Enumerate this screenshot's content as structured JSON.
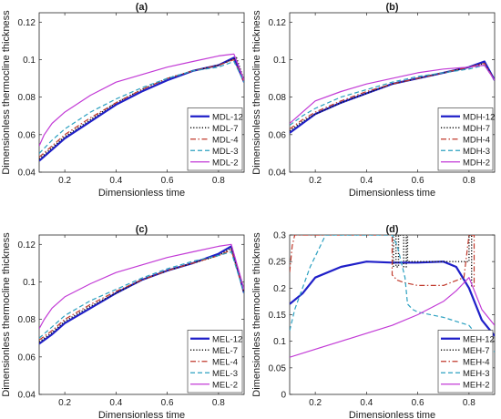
{
  "chart_data": [
    {
      "panel": "(a)",
      "type": "line",
      "xlabel": "Dimensionless time",
      "ylabel": "Dimensionless thermocline thickness",
      "xlim": [
        0.1,
        0.9
      ],
      "ylim": [
        0.04,
        0.125
      ],
      "xticks": [
        0.2,
        0.4,
        0.6,
        0.8
      ],
      "xtick_labels": [
        "0.2",
        "0.4",
        "0.6",
        "0.8"
      ],
      "yticks": [
        0.04,
        0.06,
        0.08,
        0.1,
        0.12
      ],
      "ytick_labels": [
        "0.04",
        "0.06",
        "0.08",
        "0.1",
        "0.12"
      ],
      "legend_position": "bottom-right",
      "series": [
        {
          "name": "MDL-12",
          "color": "#1f1fc8",
          "dash": "solid",
          "width": 2.2,
          "x": [
            0.1,
            0.15,
            0.2,
            0.3,
            0.4,
            0.5,
            0.6,
            0.7,
            0.8,
            0.86,
            0.9
          ],
          "y": [
            0.046,
            0.052,
            0.058,
            0.067,
            0.076,
            0.083,
            0.089,
            0.094,
            0.097,
            0.101,
            0.088
          ]
        },
        {
          "name": "MDL-7",
          "color": "#111111",
          "dash": "dot",
          "width": 1.4,
          "x": [
            0.1,
            0.15,
            0.2,
            0.3,
            0.4,
            0.5,
            0.6,
            0.7,
            0.8,
            0.87,
            0.9
          ],
          "y": [
            0.047,
            0.053,
            0.059,
            0.068,
            0.077,
            0.084,
            0.09,
            0.094,
            0.097,
            0.101,
            0.089
          ]
        },
        {
          "name": "MDL-4",
          "color": "#c0392b",
          "dash": "dashdot",
          "width": 1.2,
          "x": [
            0.1,
            0.15,
            0.2,
            0.3,
            0.4,
            0.5,
            0.6,
            0.7,
            0.8,
            0.86,
            0.9
          ],
          "y": [
            0.048,
            0.054,
            0.06,
            0.069,
            0.077,
            0.084,
            0.09,
            0.094,
            0.097,
            0.1,
            0.088
          ]
        },
        {
          "name": "MDL-3",
          "color": "#2ba0c0",
          "dash": "dash",
          "width": 1.2,
          "x": [
            0.1,
            0.15,
            0.2,
            0.3,
            0.4,
            0.5,
            0.6,
            0.7,
            0.8,
            0.86,
            0.9
          ],
          "y": [
            0.05,
            0.057,
            0.063,
            0.072,
            0.079,
            0.085,
            0.09,
            0.094,
            0.096,
            0.099,
            0.088
          ]
        },
        {
          "name": "MDL-2",
          "color": "#c23ad6",
          "dash": "solid",
          "width": 1.2,
          "x": [
            0.1,
            0.12,
            0.15,
            0.2,
            0.3,
            0.4,
            0.5,
            0.6,
            0.7,
            0.8,
            0.86,
            0.9
          ],
          "y": [
            0.054,
            0.06,
            0.066,
            0.072,
            0.081,
            0.088,
            0.092,
            0.096,
            0.099,
            0.102,
            0.103,
            0.089
          ]
        }
      ]
    },
    {
      "panel": "(b)",
      "type": "line",
      "xlabel": "Dimensionless time",
      "ylabel": "Dimensionless thermocline thickness",
      "xlim": [
        0.1,
        0.9
      ],
      "ylim": [
        0.04,
        0.125
      ],
      "xticks": [
        0.2,
        0.4,
        0.6,
        0.8
      ],
      "xtick_labels": [
        "0.2",
        "0.4",
        "0.6",
        "0.8"
      ],
      "yticks": [
        0.04,
        0.06,
        0.08,
        0.1,
        0.12
      ],
      "ytick_labels": [
        "0.04",
        "0.06",
        "0.08",
        "0.1",
        "0.12"
      ],
      "legend_position": "bottom-right",
      "series": [
        {
          "name": "MDH-12",
          "color": "#1f1fc8",
          "dash": "solid",
          "width": 2.2,
          "x": [
            0.1,
            0.15,
            0.2,
            0.3,
            0.4,
            0.5,
            0.6,
            0.7,
            0.8,
            0.86,
            0.9
          ],
          "y": [
            0.061,
            0.066,
            0.071,
            0.077,
            0.082,
            0.087,
            0.09,
            0.093,
            0.096,
            0.099,
            0.089
          ]
        },
        {
          "name": "MDH-7",
          "color": "#111111",
          "dash": "dot",
          "width": 1.4,
          "x": [
            0.1,
            0.15,
            0.2,
            0.3,
            0.4,
            0.5,
            0.6,
            0.7,
            0.8,
            0.86,
            0.9
          ],
          "y": [
            0.062,
            0.067,
            0.071,
            0.077,
            0.082,
            0.087,
            0.09,
            0.093,
            0.096,
            0.098,
            0.089
          ]
        },
        {
          "name": "MDH-4",
          "color": "#c0392b",
          "dash": "dashdot",
          "width": 1.2,
          "x": [
            0.1,
            0.15,
            0.2,
            0.3,
            0.4,
            0.5,
            0.6,
            0.7,
            0.8,
            0.86,
            0.9
          ],
          "y": [
            0.063,
            0.068,
            0.072,
            0.078,
            0.083,
            0.087,
            0.09,
            0.093,
            0.096,
            0.098,
            0.089
          ]
        },
        {
          "name": "MDH-3",
          "color": "#2ba0c0",
          "dash": "dash",
          "width": 1.2,
          "x": [
            0.1,
            0.15,
            0.2,
            0.3,
            0.4,
            0.5,
            0.6,
            0.7,
            0.8,
            0.86,
            0.9
          ],
          "y": [
            0.065,
            0.07,
            0.074,
            0.08,
            0.084,
            0.088,
            0.091,
            0.093,
            0.095,
            0.097,
            0.089
          ]
        },
        {
          "name": "MDH-2",
          "color": "#c23ad6",
          "dash": "solid",
          "width": 1.2,
          "x": [
            0.1,
            0.15,
            0.2,
            0.3,
            0.4,
            0.5,
            0.6,
            0.7,
            0.8,
            0.86,
            0.9
          ],
          "y": [
            0.066,
            0.072,
            0.078,
            0.083,
            0.087,
            0.09,
            0.093,
            0.095,
            0.096,
            0.097,
            0.089
          ]
        }
      ]
    },
    {
      "panel": "(c)",
      "type": "line",
      "xlabel": "Dimensionless time",
      "ylabel": "Dimensionless thermocline thickness",
      "xlim": [
        0.1,
        0.9
      ],
      "ylim": [
        0.04,
        0.125
      ],
      "xticks": [
        0.2,
        0.4,
        0.6,
        0.8
      ],
      "xtick_labels": [
        "0.2",
        "0.4",
        "0.6",
        "0.8"
      ],
      "yticks": [
        0.04,
        0.06,
        0.08,
        0.1,
        0.12
      ],
      "ytick_labels": [
        "0.04",
        "0.06",
        "0.08",
        "0.1",
        "0.12"
      ],
      "legend_position": "bottom-right",
      "series": [
        {
          "name": "MEL-12",
          "color": "#1f1fc8",
          "dash": "solid",
          "width": 2.2,
          "x": [
            0.1,
            0.15,
            0.2,
            0.3,
            0.4,
            0.5,
            0.6,
            0.7,
            0.8,
            0.85,
            0.9
          ],
          "y": [
            0.067,
            0.072,
            0.078,
            0.086,
            0.094,
            0.101,
            0.106,
            0.11,
            0.115,
            0.119,
            0.094
          ]
        },
        {
          "name": "MEL-7",
          "color": "#111111",
          "dash": "dot",
          "width": 1.4,
          "x": [
            0.1,
            0.15,
            0.2,
            0.3,
            0.4,
            0.5,
            0.6,
            0.7,
            0.8,
            0.85,
            0.9
          ],
          "y": [
            0.068,
            0.073,
            0.079,
            0.087,
            0.094,
            0.101,
            0.106,
            0.11,
            0.114,
            0.118,
            0.094
          ]
        },
        {
          "name": "MEL-4",
          "color": "#c0392b",
          "dash": "dashdot",
          "width": 1.2,
          "x": [
            0.1,
            0.15,
            0.2,
            0.3,
            0.4,
            0.5,
            0.6,
            0.7,
            0.8,
            0.85,
            0.9
          ],
          "y": [
            0.069,
            0.074,
            0.08,
            0.088,
            0.095,
            0.101,
            0.106,
            0.11,
            0.114,
            0.117,
            0.094
          ]
        },
        {
          "name": "MEL-3",
          "color": "#2ba0c0",
          "dash": "dash",
          "width": 1.2,
          "x": [
            0.1,
            0.15,
            0.2,
            0.3,
            0.4,
            0.5,
            0.6,
            0.7,
            0.8,
            0.85,
            0.9
          ],
          "y": [
            0.07,
            0.076,
            0.082,
            0.09,
            0.096,
            0.102,
            0.107,
            0.111,
            0.114,
            0.116,
            0.094
          ]
        },
        {
          "name": "MEL-2",
          "color": "#c23ad6",
          "dash": "solid",
          "width": 1.2,
          "x": [
            0.1,
            0.12,
            0.15,
            0.2,
            0.3,
            0.4,
            0.5,
            0.6,
            0.7,
            0.8,
            0.85,
            0.9
          ],
          "y": [
            0.075,
            0.08,
            0.086,
            0.092,
            0.099,
            0.105,
            0.109,
            0.113,
            0.116,
            0.119,
            0.12,
            0.096
          ]
        }
      ]
    },
    {
      "panel": "(d)",
      "type": "line",
      "xlabel": "Dimensionless time",
      "ylabel": "Dimensionless thermocline thickness",
      "xlim": [
        0.1,
        0.9
      ],
      "ylim": [
        0.0,
        0.3
      ],
      "xticks": [
        0.2,
        0.4,
        0.6,
        0.8
      ],
      "xtick_labels": [
        "0.2",
        "0.4",
        "0.6",
        "0.8"
      ],
      "yticks": [
        0.0,
        0.05,
        0.1,
        0.15,
        0.2,
        0.25,
        0.3
      ],
      "ytick_labels": [
        "0",
        "0.05",
        "0.1",
        "0.15",
        "0.2",
        "0.25",
        "0.3"
      ],
      "legend_position": "bottom-right",
      "series": [
        {
          "name": "MEH-12",
          "color": "#1f1fc8",
          "dash": "solid",
          "width": 2.2,
          "x": [
            0.1,
            0.15,
            0.2,
            0.3,
            0.4,
            0.5,
            0.6,
            0.7,
            0.75,
            0.8,
            0.85,
            0.9
          ],
          "y": [
            0.17,
            0.19,
            0.22,
            0.24,
            0.25,
            0.248,
            0.248,
            0.25,
            0.24,
            0.2,
            0.14,
            0.11
          ]
        },
        {
          "name": "MEH-7",
          "color": "#111111",
          "dash": "dot",
          "width": 1.4,
          "x": [
            0.505,
            0.505,
            0.515,
            0.515,
            0.525,
            0.525,
            0.545,
            0.545,
            0.555,
            0.555,
            0.56,
            0.56,
            0.8,
            0.8,
            0.81,
            0.81
          ],
          "y": [
            0.24,
            0.3,
            0.3,
            0.24,
            0.24,
            0.3,
            0.3,
            0.24,
            0.24,
            0.3,
            0.3,
            0.25,
            0.25,
            0.3,
            0.3,
            0.2
          ]
        },
        {
          "name": "MEH-4",
          "color": "#c0392b",
          "dash": "dashdot",
          "width": 1.2,
          "x": [
            0.1,
            0.11,
            0.12,
            0.5,
            0.5,
            0.52,
            0.55,
            0.6,
            0.7,
            0.78,
            0.8,
            0.8,
            0.82,
            0.82
          ],
          "y": [
            0.23,
            0.28,
            0.3,
            0.3,
            0.225,
            0.215,
            0.21,
            0.205,
            0.205,
            0.22,
            0.3,
            0.3,
            0.3,
            0.2
          ]
        },
        {
          "name": "MEH-3",
          "color": "#2ba0c0",
          "dash": "dash",
          "width": 1.2,
          "x": [
            0.1,
            0.12,
            0.15,
            0.18,
            0.22,
            0.24,
            0.24,
            0.5,
            0.52,
            0.55,
            0.56,
            0.58,
            0.6,
            0.7,
            0.8,
            0.85,
            0.9
          ],
          "y": [
            0.12,
            0.16,
            0.2,
            0.24,
            0.28,
            0.3,
            0.3,
            0.3,
            0.28,
            0.22,
            0.17,
            0.16,
            0.155,
            0.145,
            0.13,
            0.1,
            0.08
          ]
        },
        {
          "name": "MEH-2",
          "color": "#c23ad6",
          "dash": "solid",
          "width": 1.2,
          "x": [
            0.1,
            0.2,
            0.3,
            0.4,
            0.5,
            0.6,
            0.7,
            0.75,
            0.8,
            0.85,
            0.9
          ],
          "y": [
            0.07,
            0.085,
            0.1,
            0.115,
            0.13,
            0.15,
            0.175,
            0.195,
            0.22,
            0.16,
            0.13
          ]
        }
      ]
    }
  ]
}
